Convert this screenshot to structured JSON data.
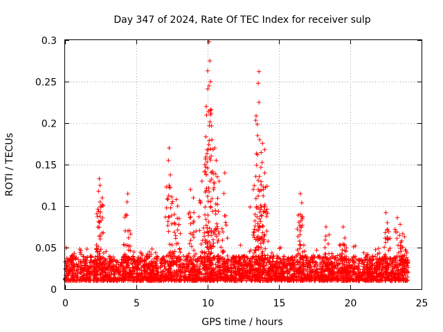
{
  "chart_data": {
    "type": "scatter",
    "title": "Day 347 of 2024, Rate Of TEC Index for receiver sulp",
    "xlabel": "GPS time / hours",
    "ylabel": "ROTI / TECUs",
    "xlim": [
      0,
      25
    ],
    "ylim": [
      0,
      0.3
    ],
    "xticks": [
      "0",
      "5",
      "10",
      "15",
      "20",
      "25"
    ],
    "yticks": [
      "0",
      "0.05",
      "0.1",
      "0.15",
      "0.2",
      "0.25",
      "0.3"
    ],
    "grid": true,
    "marker": "+",
    "color": "#ff0000",
    "series": [
      {
        "name": "ROTI",
        "baseline_band": [
          0.01,
          0.04
        ],
        "notable_points": [
          {
            "x": 2.4,
            "y": 0.133
          },
          {
            "x": 2.45,
            "y": 0.125
          },
          {
            "x": 2.35,
            "y": 0.118
          },
          {
            "x": 2.45,
            "y": 0.105
          },
          {
            "x": 4.4,
            "y": 0.115
          },
          {
            "x": 4.35,
            "y": 0.105
          },
          {
            "x": 7.3,
            "y": 0.17
          },
          {
            "x": 7.25,
            "y": 0.155
          },
          {
            "x": 7.3,
            "y": 0.125
          },
          {
            "x": 7.8,
            "y": 0.108
          },
          {
            "x": 7.9,
            "y": 0.1
          },
          {
            "x": 8.8,
            "y": 0.12
          },
          {
            "x": 9.0,
            "y": 0.11
          },
          {
            "x": 9.6,
            "y": 0.13
          },
          {
            "x": 9.8,
            "y": 0.15
          },
          {
            "x": 9.9,
            "y": 0.22
          },
          {
            "x": 10.0,
            "y": 0.263
          },
          {
            "x": 10.1,
            "y": 0.298
          },
          {
            "x": 10.15,
            "y": 0.275
          },
          {
            "x": 10.2,
            "y": 0.25
          },
          {
            "x": 10.1,
            "y": 0.245
          },
          {
            "x": 10.2,
            "y": 0.21
          },
          {
            "x": 10.3,
            "y": 0.18
          },
          {
            "x": 10.5,
            "y": 0.17
          },
          {
            "x": 10.6,
            "y": 0.155
          },
          {
            "x": 10.8,
            "y": 0.13
          },
          {
            "x": 11.2,
            "y": 0.14
          },
          {
            "x": 13.2,
            "y": 0.12
          },
          {
            "x": 13.6,
            "y": 0.262
          },
          {
            "x": 13.55,
            "y": 0.248
          },
          {
            "x": 13.6,
            "y": 0.225
          },
          {
            "x": 13.5,
            "y": 0.185
          },
          {
            "x": 13.65,
            "y": 0.18
          },
          {
            "x": 13.5,
            "y": 0.162
          },
          {
            "x": 14.0,
            "y": 0.168
          },
          {
            "x": 14.0,
            "y": 0.14
          },
          {
            "x": 13.9,
            "y": 0.12
          },
          {
            "x": 16.5,
            "y": 0.115
          },
          {
            "x": 16.6,
            "y": 0.104
          },
          {
            "x": 16.5,
            "y": 0.09
          },
          {
            "x": 18.3,
            "y": 0.075
          },
          {
            "x": 19.5,
            "y": 0.075
          },
          {
            "x": 22.5,
            "y": 0.092
          },
          {
            "x": 22.6,
            "y": 0.08
          },
          {
            "x": 23.3,
            "y": 0.086
          },
          {
            "x": 23.5,
            "y": 0.078
          },
          {
            "x": 23.8,
            "y": 0.063
          }
        ]
      }
    ]
  }
}
